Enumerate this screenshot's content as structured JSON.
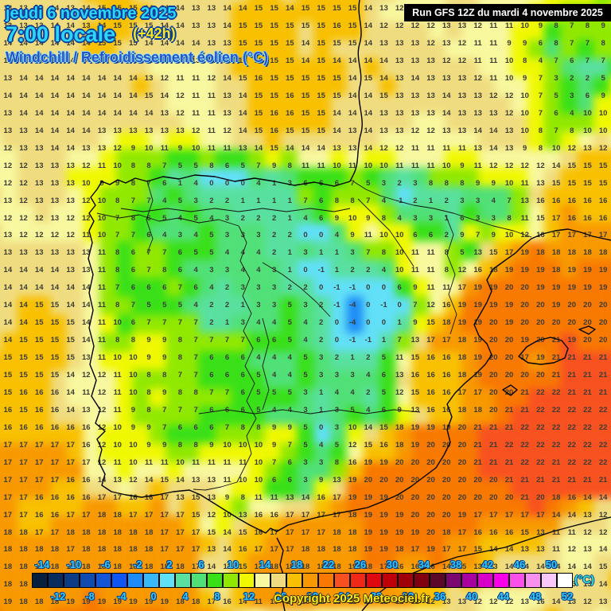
{
  "header": {
    "date_line": "jeudi 6 novembre 2025",
    "time_line": "7:00 locale",
    "forecast_offset": "(+42h)",
    "map_title": "Windchill / Refroidissement éolien (°C)"
  },
  "run_banner": {
    "text": "Run GFS 12Z du mardi 4 novembre 2025"
  },
  "footer": {
    "copyright": "Copyright 2025 Meteociel.fr"
  },
  "colorbar": {
    "unit": "(°C)",
    "top_ticks": [
      -14,
      -10,
      -6,
      -2,
      2,
      6,
      10,
      14,
      18,
      22,
      26,
      30,
      34,
      38,
      42,
      46,
      50
    ],
    "bottom_ticks": [
      -12,
      -8,
      -4,
      0,
      4,
      8,
      12,
      16,
      20,
      24,
      28,
      32,
      36,
      40,
      44,
      48,
      52
    ],
    "colors": [
      "#06203e",
      "#082c5e",
      "#0c3c85",
      "#104cb0",
      "#1455d8",
      "#0e55f2",
      "#1e8cf8",
      "#38b8f8",
      "#60e0f8",
      "#58e0a0",
      "#50e078",
      "#38e018",
      "#90e800",
      "#f0f800",
      "#f8f8a0",
      "#f0dc80",
      "#f8c000",
      "#f89800",
      "#f87800",
      "#f85020",
      "#f02818",
      "#e00810",
      "#c00008",
      "#a00008",
      "#800010",
      "#5c0828",
      "#7a0870",
      "#a800a0",
      "#d800c8",
      "#f800e8",
      "#f850e8",
      "#f890f0",
      "#f8c8f8",
      "#ffffff"
    ]
  },
  "chart_data": {
    "type": "heatmap",
    "title": "Windchill / Refroidissement éolien (°C)",
    "unit": "°C",
    "rows": 35,
    "cols": 39,
    "value_min": -14,
    "value_max": 52,
    "grid": [
      [
        13,
        13,
        14,
        14,
        13,
        14,
        15,
        15,
        15,
        14,
        14,
        14,
        13,
        13,
        14,
        14,
        15,
        15,
        14,
        15,
        15,
        15,
        15,
        14,
        13,
        12,
        12,
        12,
        13,
        13,
        12,
        11,
        11,
        11,
        10,
        10,
        9,
        7,
        8
      ],
      [
        13,
        13,
        13,
        14,
        14,
        13,
        14,
        15,
        15,
        15,
        14,
        14,
        13,
        13,
        14,
        15,
        15,
        15,
        15,
        15,
        15,
        16,
        15,
        14,
        12,
        12,
        12,
        12,
        13,
        13,
        12,
        11,
        11,
        10,
        9,
        8,
        7,
        8,
        9
      ],
      [
        14,
        14,
        14,
        14,
        14,
        14,
        15,
        15,
        15,
        14,
        14,
        14,
        14,
        13,
        13,
        15,
        15,
        15,
        15,
        14,
        15,
        15,
        15,
        14,
        13,
        13,
        13,
        12,
        13,
        12,
        11,
        11,
        9,
        9,
        6,
        8,
        7,
        7,
        8
      ],
      [
        14,
        14,
        14,
        14,
        14,
        14,
        15,
        15,
        14,
        14,
        13,
        13,
        13,
        14,
        14,
        15,
        15,
        15,
        15,
        14,
        15,
        14,
        14,
        14,
        14,
        13,
        13,
        13,
        12,
        12,
        11,
        11,
        10,
        8,
        4,
        7,
        6,
        7,
        7
      ],
      [
        13,
        14,
        14,
        14,
        14,
        14,
        14,
        14,
        14,
        13,
        12,
        11,
        11,
        12,
        14,
        15,
        16,
        15,
        15,
        15,
        15,
        15,
        14,
        15,
        14,
        13,
        14,
        13,
        13,
        13,
        12,
        11,
        10,
        9,
        7,
        3,
        2,
        2,
        5
      ],
      [
        14,
        14,
        14,
        14,
        14,
        14,
        14,
        14,
        14,
        15,
        14,
        12,
        11,
        11,
        13,
        14,
        15,
        15,
        16,
        15,
        15,
        15,
        14,
        14,
        15,
        13,
        13,
        13,
        14,
        13,
        13,
        12,
        12,
        10,
        7,
        5,
        3,
        6,
        9
      ],
      [
        13,
        14,
        14,
        14,
        14,
        14,
        14,
        14,
        14,
        14,
        13,
        12,
        11,
        11,
        13,
        14,
        15,
        16,
        16,
        15,
        15,
        14,
        14,
        14,
        13,
        13,
        13,
        13,
        14,
        13,
        13,
        13,
        12,
        10,
        7,
        6,
        4,
        10,
        10
      ],
      [
        13,
        13,
        14,
        14,
        14,
        14,
        13,
        13,
        13,
        13,
        13,
        13,
        12,
        11,
        12,
        14,
        15,
        16,
        15,
        15,
        15,
        14,
        13,
        14,
        13,
        13,
        12,
        12,
        13,
        13,
        14,
        14,
        13,
        10,
        8,
        7,
        8,
        10,
        10
      ],
      [
        12,
        13,
        13,
        14,
        14,
        13,
        13,
        12,
        9,
        10,
        11,
        9,
        10,
        11,
        11,
        13,
        14,
        15,
        14,
        14,
        14,
        13,
        13,
        14,
        12,
        12,
        11,
        11,
        11,
        11,
        13,
        14,
        13,
        9,
        8,
        10,
        12,
        13,
        12
      ],
      [
        12,
        12,
        13,
        13,
        13,
        12,
        11,
        10,
        8,
        8,
        7,
        5,
        5,
        8,
        6,
        5,
        7,
        9,
        8,
        11,
        11,
        10,
        11,
        10,
        10,
        11,
        11,
        11,
        10,
        9,
        11,
        12,
        12,
        12,
        12,
        14,
        15,
        15,
        15
      ],
      [
        12,
        12,
        13,
        13,
        13,
        10,
        9,
        9,
        8,
        7,
        6,
        1,
        4,
        0,
        0,
        0,
        4,
        1,
        3,
        6,
        6,
        6,
        7,
        5,
        3,
        2,
        3,
        8,
        8,
        8,
        9,
        9,
        10,
        11,
        13,
        15,
        15,
        15,
        15
      ],
      [
        13,
        12,
        13,
        13,
        13,
        12,
        10,
        8,
        7,
        7,
        4,
        5,
        3,
        2,
        2,
        1,
        1,
        1,
        1,
        7,
        6,
        8,
        8,
        7,
        4,
        -1,
        2,
        1,
        2,
        3,
        3,
        4,
        7,
        13,
        16,
        16,
        16,
        16,
        16
      ],
      [
        12,
        12,
        12,
        13,
        12,
        12,
        10,
        7,
        8,
        6,
        5,
        4,
        5,
        4,
        3,
        2,
        2,
        2,
        1,
        4,
        6,
        9,
        10,
        9,
        8,
        4,
        3,
        3,
        1,
        6,
        3,
        3,
        8,
        11,
        15,
        17,
        16,
        16,
        16
      ],
      [
        13,
        12,
        12,
        12,
        12,
        11,
        10,
        7,
        7,
        6,
        4,
        3,
        4,
        5,
        3,
        3,
        3,
        2,
        2,
        0,
        0,
        4,
        9,
        11,
        10,
        10,
        6,
        6,
        2,
        9,
        7,
        9,
        10,
        12,
        16,
        17,
        17,
        17,
        17
      ],
      [
        13,
        13,
        13,
        13,
        13,
        13,
        11,
        8,
        6,
        7,
        7,
        6,
        5,
        5,
        4,
        4,
        4,
        2,
        1,
        3,
        1,
        1,
        3,
        7,
        8,
        10,
        11,
        11,
        8,
        5,
        13,
        15,
        17,
        19,
        18,
        18,
        18,
        18,
        18
      ],
      [
        14,
        14,
        14,
        14,
        13,
        13,
        11,
        8,
        6,
        7,
        8,
        6,
        4,
        3,
        3,
        4,
        4,
        3,
        1,
        0,
        -1,
        1,
        2,
        2,
        4,
        10,
        11,
        11,
        8,
        12,
        16,
        18,
        19,
        19,
        19,
        18,
        19,
        19,
        19
      ],
      [
        14,
        14,
        14,
        14,
        14,
        14,
        11,
        7,
        6,
        6,
        6,
        7,
        6,
        4,
        2,
        3,
        3,
        3,
        2,
        2,
        0,
        -1,
        -1,
        0,
        0,
        6,
        9,
        11,
        11,
        17,
        19,
        19,
        20,
        20,
        19,
        19,
        19,
        19,
        19
      ],
      [
        14,
        14,
        15,
        15,
        14,
        14,
        11,
        8,
        7,
        5,
        5,
        5,
        4,
        2,
        2,
        1,
        3,
        3,
        5,
        3,
        2,
        -1,
        -4,
        0,
        -1,
        0,
        7,
        12,
        16,
        19,
        19,
        19,
        19,
        20,
        20,
        19,
        20,
        20,
        20
      ],
      [
        14,
        14,
        15,
        15,
        15,
        14,
        11,
        10,
        6,
        7,
        7,
        7,
        7,
        2,
        1,
        3,
        4,
        4,
        5,
        4,
        2,
        0,
        -4,
        0,
        0,
        1,
        9,
        15,
        18,
        19,
        19,
        20,
        19,
        20,
        20,
        20,
        20,
        20,
        20
      ],
      [
        14,
        15,
        15,
        15,
        15,
        14,
        11,
        8,
        8,
        9,
        9,
        8,
        7,
        7,
        7,
        7,
        6,
        6,
        5,
        4,
        2,
        0,
        -1,
        -1,
        1,
        7,
        13,
        17,
        17,
        18,
        19,
        20,
        20,
        19,
        20,
        21,
        19,
        20,
        20
      ],
      [
        15,
        15,
        15,
        15,
        15,
        13,
        11,
        10,
        10,
        9,
        9,
        8,
        7,
        6,
        6,
        6,
        4,
        4,
        4,
        5,
        3,
        2,
        1,
        2,
        5,
        11,
        15,
        16,
        16,
        18,
        19,
        20,
        20,
        17,
        19,
        21,
        21,
        21,
        21
      ],
      [
        15,
        15,
        15,
        15,
        14,
        12,
        12,
        11,
        10,
        8,
        8,
        7,
        7,
        6,
        6,
        6,
        5,
        4,
        4,
        5,
        3,
        3,
        3,
        4,
        6,
        13,
        16,
        16,
        16,
        18,
        19,
        20,
        20,
        20,
        20,
        21,
        21,
        21,
        21
      ],
      [
        15,
        16,
        16,
        16,
        14,
        11,
        12,
        11,
        10,
        8,
        9,
        8,
        8,
        7,
        7,
        6,
        5,
        5,
        5,
        3,
        1,
        4,
        4,
        2,
        5,
        12,
        15,
        16,
        16,
        17,
        17,
        20,
        20,
        21,
        22,
        22,
        21,
        21,
        21
      ],
      [
        16,
        15,
        16,
        16,
        14,
        13,
        12,
        11,
        9,
        8,
        7,
        7,
        7,
        6,
        6,
        6,
        5,
        4,
        4,
        3,
        1,
        3,
        5,
        4,
        6,
        9,
        13,
        16,
        16,
        18,
        18,
        20,
        21,
        21,
        22,
        22,
        22,
        22,
        22
      ],
      [
        16,
        16,
        16,
        16,
        16,
        16,
        12,
        10,
        9,
        9,
        7,
        6,
        6,
        6,
        7,
        8,
        8,
        9,
        9,
        5,
        0,
        3,
        10,
        14,
        15,
        18,
        19,
        19,
        19,
        20,
        21,
        21,
        21,
        22,
        22,
        22,
        22,
        22,
        22
      ],
      [
        17,
        17,
        17,
        17,
        17,
        16,
        12,
        10,
        10,
        9,
        9,
        8,
        8,
        9,
        10,
        10,
        10,
        9,
        7,
        5,
        4,
        5,
        12,
        15,
        16,
        18,
        19,
        20,
        20,
        20,
        21,
        21,
        22,
        22,
        22,
        22,
        22,
        22,
        22
      ],
      [
        17,
        17,
        17,
        17,
        17,
        17,
        12,
        11,
        10,
        11,
        11,
        10,
        11,
        11,
        11,
        11,
        10,
        7,
        6,
        3,
        3,
        8,
        16,
        19,
        19,
        20,
        20,
        20,
        20,
        20,
        21,
        21,
        21,
        22,
        22,
        21,
        22,
        22,
        22
      ],
      [
        17,
        17,
        17,
        17,
        16,
        16,
        14,
        13,
        12,
        14,
        15,
        14,
        13,
        13,
        11,
        10,
        10,
        6,
        6,
        3,
        9,
        13,
        19,
        20,
        20,
        20,
        20,
        20,
        20,
        20,
        20,
        20,
        21,
        21,
        21,
        21,
        21,
        21,
        21
      ],
      [
        17,
        17,
        16,
        16,
        16,
        16,
        17,
        17,
        16,
        16,
        17,
        13,
        15,
        13,
        9,
        8,
        11,
        11,
        13,
        14,
        16,
        17,
        19,
        19,
        19,
        20,
        20,
        20,
        20,
        20,
        20,
        20,
        20,
        21,
        20,
        18,
        16,
        14,
        14
      ],
      [
        17,
        17,
        16,
        16,
        17,
        17,
        18,
        18,
        17,
        17,
        17,
        17,
        15,
        12,
        10,
        13,
        16,
        16,
        17,
        17,
        17,
        17,
        18,
        19,
        19,
        19,
        20,
        20,
        20,
        19,
        17,
        17,
        17,
        17,
        17,
        14,
        14,
        13,
        12
      ],
      [
        18,
        18,
        17,
        17,
        18,
        18,
        18,
        18,
        18,
        18,
        17,
        17,
        17,
        15,
        14,
        15,
        16,
        17,
        17,
        17,
        17,
        18,
        18,
        19,
        19,
        19,
        19,
        20,
        18,
        17,
        16,
        16,
        16,
        15,
        13,
        11,
        11,
        12,
        12
      ],
      [
        18,
        18,
        18,
        18,
        17,
        18,
        18,
        18,
        18,
        18,
        17,
        17,
        17,
        13,
        14,
        16,
        17,
        17,
        17,
        18,
        18,
        18,
        18,
        19,
        19,
        18,
        17,
        19,
        17,
        17,
        15,
        14,
        14,
        13,
        13,
        11,
        12,
        13,
        14
      ],
      [
        18,
        18,
        18,
        18,
        18,
        18,
        18,
        18,
        18,
        18,
        18,
        18,
        17,
        14,
        11,
        15,
        17,
        18,
        18,
        18,
        18,
        18,
        19,
        18,
        17,
        16,
        16,
        16,
        14,
        15,
        13,
        13,
        14,
        14,
        14,
        14,
        14,
        14,
        15
      ],
      [
        18,
        18,
        18,
        18,
        18,
        18,
        19,
        18,
        18,
        18,
        18,
        18,
        17,
        15,
        14,
        15,
        17,
        17,
        17,
        17,
        17,
        17,
        18,
        18,
        18,
        17,
        16,
        15,
        14,
        13,
        12,
        11,
        11,
        12,
        13,
        13,
        13,
        13,
        14
      ],
      [
        19,
        18,
        18,
        18,
        19,
        19,
        19,
        19,
        19,
        19,
        19,
        18,
        18,
        17,
        16,
        14,
        11,
        13,
        14,
        13,
        11,
        11,
        11,
        12,
        12,
        12,
        12,
        12,
        13,
        13,
        12,
        12,
        12,
        13,
        16,
        14,
        13,
        12,
        13
      ]
    ]
  }
}
